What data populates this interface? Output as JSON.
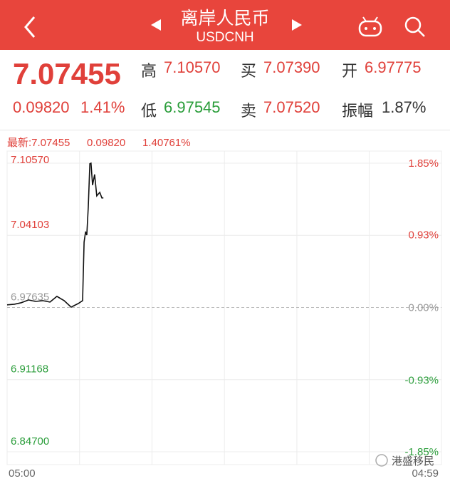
{
  "header": {
    "title": "离岸人民币",
    "subtitle": "USDCNH"
  },
  "quote": {
    "price": "7.07455",
    "change": "0.09820",
    "change_pct": "1.41%",
    "fields": [
      {
        "label": "高",
        "value": "7.10570",
        "color": "#e0403a"
      },
      {
        "label": "买",
        "value": "7.07390",
        "color": "#e0403a"
      },
      {
        "label": "开",
        "value": "6.97775",
        "color": "#e0403a"
      },
      {
        "label": "低",
        "value": "6.97545",
        "color": "#2a9d3a"
      },
      {
        "label": "卖",
        "value": "7.07520",
        "color": "#e0403a"
      },
      {
        "label": "振幅",
        "value": "1.87%",
        "color": "#333333"
      }
    ]
  },
  "chart_data": {
    "type": "line",
    "info": [
      "最新:7.07455",
      "0.09820",
      "1.40761%"
    ],
    "x": [
      0,
      24,
      47,
      71,
      94,
      118,
      142,
      165,
      189,
      212,
      236,
      250,
      255,
      260,
      264,
      269,
      274,
      278,
      283,
      290,
      297,
      307,
      314,
      319
    ],
    "series": [
      {
        "color": "#111111",
        "values": [
          6.9787,
          6.9793,
          6.9806,
          6.9831,
          6.9818,
          6.9825,
          6.9812,
          6.9863,
          6.9825,
          6.9767,
          6.9799,
          6.9825,
          7.0349,
          7.0444,
          7.0412,
          7.0668,
          7.1052,
          7.1057,
          7.086,
          7.0956,
          7.0764,
          7.0796,
          7.0745,
          7.0746
        ]
      }
    ],
    "xlim": [
      0,
      1439
    ],
    "xticks": [
      {
        "value": 0,
        "label": "05:00"
      },
      {
        "value": 1439,
        "label": "04:59"
      }
    ],
    "xgrid": [
      240,
      480,
      720,
      960,
      1200
    ],
    "ylim": [
      6.847,
      7.1057
    ],
    "yticks": [
      {
        "value": 7.1057,
        "label": "7.10570"
      },
      {
        "value": 7.04103,
        "label": "7.04103"
      },
      {
        "value": 6.97635,
        "label": "6.97635"
      },
      {
        "value": 6.91168,
        "label": "6.91168"
      },
      {
        "value": 6.847,
        "label": "6.84700"
      }
    ],
    "y2lim": [
      -1.85,
      1.85
    ],
    "y2ticks": [
      {
        "value": 1.85,
        "label": "1.85%"
      },
      {
        "value": 0.93,
        "label": "0.93%"
      },
      {
        "value": 0,
        "label": "0.00%"
      },
      {
        "value": -0.93,
        "label": "-0.93%"
      },
      {
        "value": -1.85,
        "label": "-1.85%"
      }
    ],
    "up_color": "#e0403a",
    "down_color": "#2a9d3a",
    "flat_color": "#999999",
    "grid": true
  },
  "watermark": "港盛移民"
}
